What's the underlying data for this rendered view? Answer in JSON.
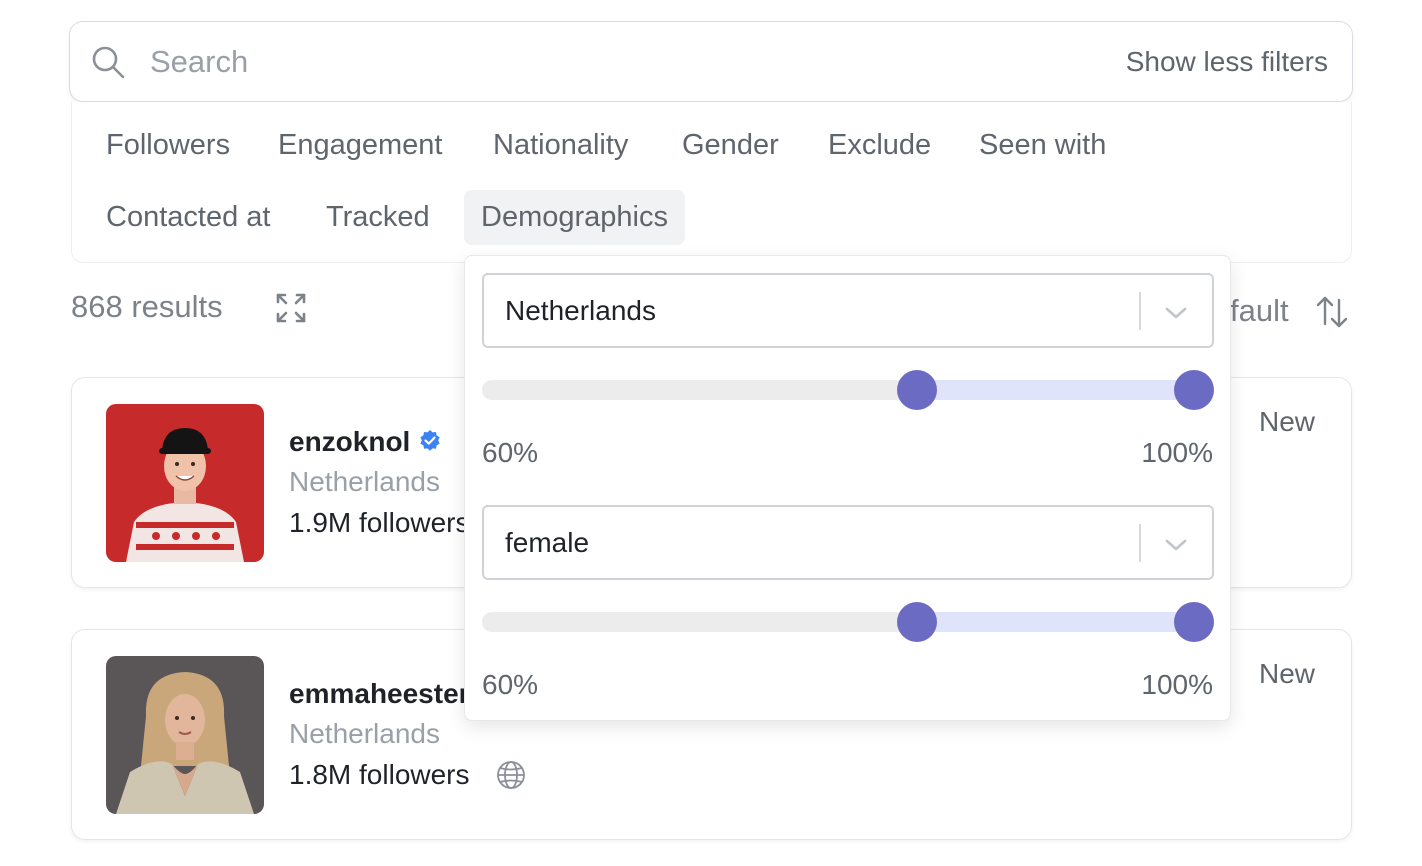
{
  "search": {
    "placeholder": "Search",
    "value": "",
    "toggle_filters_label": "Show less filters"
  },
  "filters": {
    "row1": [
      "Followers",
      "Engagement",
      "Nationality",
      "Gender",
      "Exclude",
      "Seen with"
    ],
    "row2": [
      "Contacted at",
      "Tracked",
      "Demographics"
    ],
    "active": "Demographics"
  },
  "results": {
    "count_label": "868 results",
    "sort_label_visible": "fault"
  },
  "demographics_popover": {
    "country_select": {
      "value": "Netherlands"
    },
    "country_range": {
      "min_label": "60%",
      "max_label": "100%",
      "min": 0.6,
      "max": 1.0
    },
    "gender_select": {
      "value": "female"
    },
    "gender_range": {
      "min_label": "60%",
      "max_label": "100%",
      "min": 0.6,
      "max": 1.0
    }
  },
  "influencers": [
    {
      "username": "enzoknol",
      "verified": true,
      "country": "Netherlands",
      "followers": "1.9M followers",
      "status": "New"
    },
    {
      "username": "emmaheesters",
      "verified": false,
      "country": "Netherlands",
      "followers": "1.8M followers",
      "status": "New"
    }
  ],
  "colors": {
    "accent": "#6c6bc4",
    "range_fill": "#e0e4fb",
    "verified": "#3b82f6"
  }
}
